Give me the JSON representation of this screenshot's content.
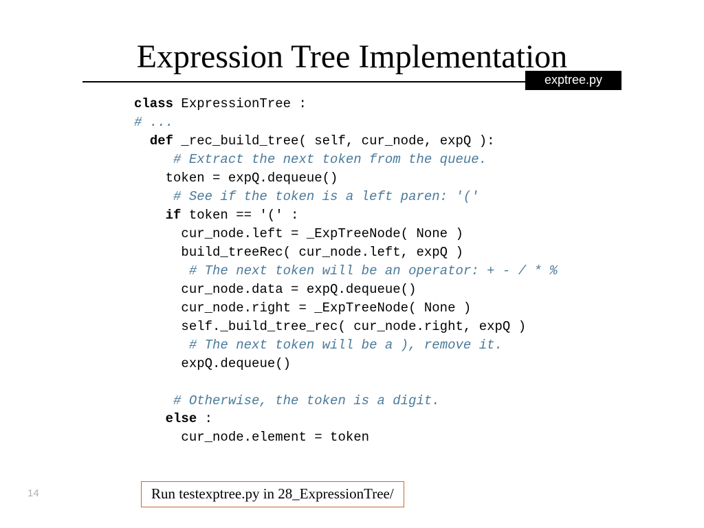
{
  "title": "Expression Tree Implementation",
  "file_label": "exptree.py",
  "page_number": "14",
  "run_note": "Run testexptree.py in 28_ExpressionTree/",
  "code": {
    "l1a": "class",
    "l1b": " ExpressionTree :",
    "l2": "# ...",
    "l3a": "def",
    "l3b": " _rec_build_tree( self, cur_node, expQ ):",
    "l4": "# Extract the next token from the queue.",
    "l5": "token = expQ.dequeue()",
    "l6": "# See if the token is a left paren: '('",
    "l7a": "if",
    "l7b": " token == '(' :",
    "l8": "cur_node.left = _ExpTreeNode( None )",
    "l9": "build_treeRec( cur_node.left, expQ )",
    "l10": "# The next token will be an operator: + - / * %",
    "l11": "cur_node.data = expQ.dequeue()",
    "l12": "cur_node.right = _ExpTreeNode( None )",
    "l13": "self._build_tree_rec( cur_node.right, expQ )",
    "l14": "# The next token will be a ), remove it.",
    "l15": "expQ.dequeue()",
    "l16": "# Otherwise, the token is a digit.",
    "l17a": "else",
    "l17b": " :",
    "l18": "cur_node.element = token"
  },
  "styling": {
    "background_color": "#ffffff",
    "title_color": "#000000",
    "title_fontsize": 48,
    "code_fontsize": 19,
    "code_color": "#000000",
    "comment_color": "#4a7a9a",
    "keyword_weight": "bold",
    "file_label_bg": "#000000",
    "file_label_fg": "#ffffff",
    "run_box_border": "#cc6633",
    "page_num_color": "#b0b0b0",
    "hr_color": "#000000",
    "hr_thickness": 2.5,
    "code_font": "Courier New",
    "title_font": "Palatino"
  }
}
